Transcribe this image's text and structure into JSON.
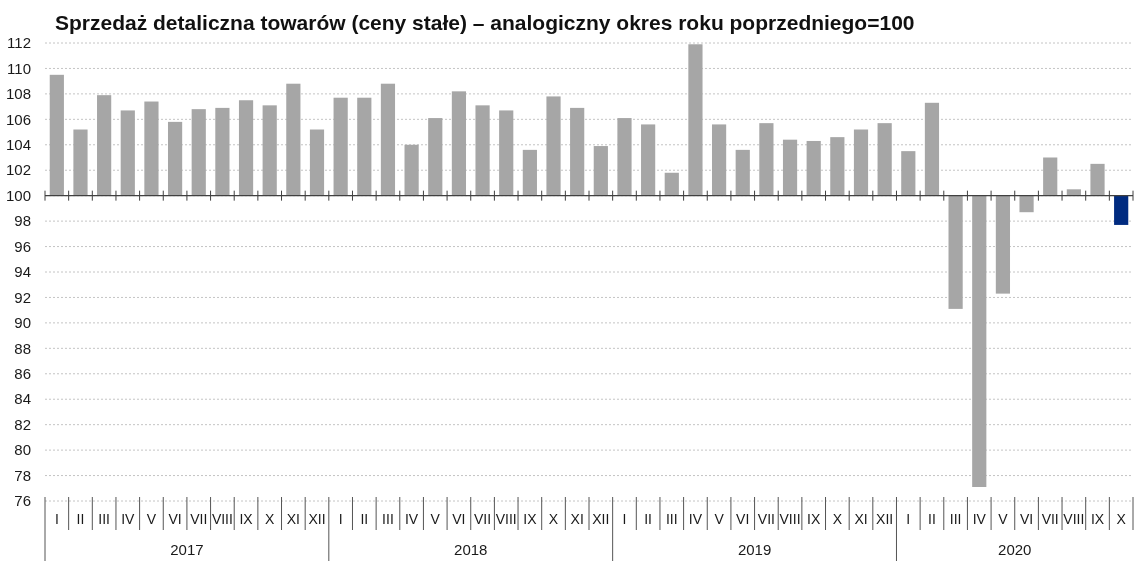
{
  "chart_data": {
    "type": "bar",
    "title": "Sprzedaż detaliczna towarów (ceny stałe) – analogiczny okres roku poprzedniego=100",
    "categories": [
      "I",
      "II",
      "III",
      "IV",
      "V",
      "VI",
      "VII",
      "VIII",
      "IX",
      "X",
      "XI",
      "XII",
      "I",
      "II",
      "III",
      "IV",
      "V",
      "VI",
      "VII",
      "VIII",
      "IX",
      "X",
      "XI",
      "XII",
      "I",
      "II",
      "III",
      "IV",
      "V",
      "VI",
      "VII",
      "VIII",
      "IX",
      "X",
      "XI",
      "XII",
      "I",
      "II",
      "III",
      "IV",
      "V",
      "VI",
      "VII",
      "VIII",
      "IX",
      "X"
    ],
    "base": [
      100,
      100,
      100,
      100,
      100,
      100,
      100,
      100,
      100,
      100,
      100,
      100,
      100,
      100,
      100,
      100,
      100,
      100,
      100,
      100,
      100,
      100,
      100,
      100,
      100,
      100,
      100,
      100,
      100,
      100,
      100,
      100,
      100,
      100,
      100,
      100,
      100,
      100,
      100,
      100,
      100,
      100,
      100,
      100,
      100,
      100
    ],
    "values": [
      9.5,
      5.2,
      7.9,
      6.7,
      7.4,
      5.8,
      6.8,
      6.9,
      7.5,
      7.1,
      8.8,
      5.2,
      7.7,
      7.7,
      8.8,
      4.0,
      6.1,
      8.2,
      7.1,
      6.7,
      3.6,
      7.8,
      6.9,
      3.9,
      6.1,
      5.6,
      1.8,
      11.9,
      5.6,
      3.6,
      5.7,
      4.4,
      4.3,
      4.6,
      5.2,
      5.7,
      3.5,
      7.3,
      -8.9,
      -22.9,
      -7.7,
      -1.3,
      3.0,
      0.5,
      2.5,
      -2.3
    ],
    "colors": [
      "#a6a6a6",
      "#a6a6a6",
      "#a6a6a6",
      "#a6a6a6",
      "#a6a6a6",
      "#a6a6a6",
      "#a6a6a6",
      "#a6a6a6",
      "#a6a6a6",
      "#a6a6a6",
      "#a6a6a6",
      "#a6a6a6",
      "#a6a6a6",
      "#a6a6a6",
      "#a6a6a6",
      "#a6a6a6",
      "#a6a6a6",
      "#a6a6a6",
      "#a6a6a6",
      "#a6a6a6",
      "#a6a6a6",
      "#a6a6a6",
      "#a6a6a6",
      "#a6a6a6",
      "#a6a6a6",
      "#a6a6a6",
      "#a6a6a6",
      "#a6a6a6",
      "#a6a6a6",
      "#a6a6a6",
      "#a6a6a6",
      "#a6a6a6",
      "#a6a6a6",
      "#a6a6a6",
      "#a6a6a6",
      "#a6a6a6",
      "#a6a6a6",
      "#a6a6a6",
      "#a6a6a6",
      "#a6a6a6",
      "#a6a6a6",
      "#a6a6a6",
      "#a6a6a6",
      "#a6a6a6",
      "#a6a6a6",
      "#002b80"
    ],
    "ylim": [
      76,
      112
    ],
    "yticks": [
      76,
      78,
      80,
      82,
      84,
      86,
      88,
      90,
      92,
      94,
      96,
      98,
      100,
      102,
      104,
      106,
      108,
      110,
      112
    ],
    "grid": "y",
    "ref_lines": [
      {
        "axis": "y",
        "value": 100,
        "color": "#404040"
      }
    ],
    "annotations": [
      "2017",
      "2018",
      "2019",
      "2020"
    ]
  }
}
